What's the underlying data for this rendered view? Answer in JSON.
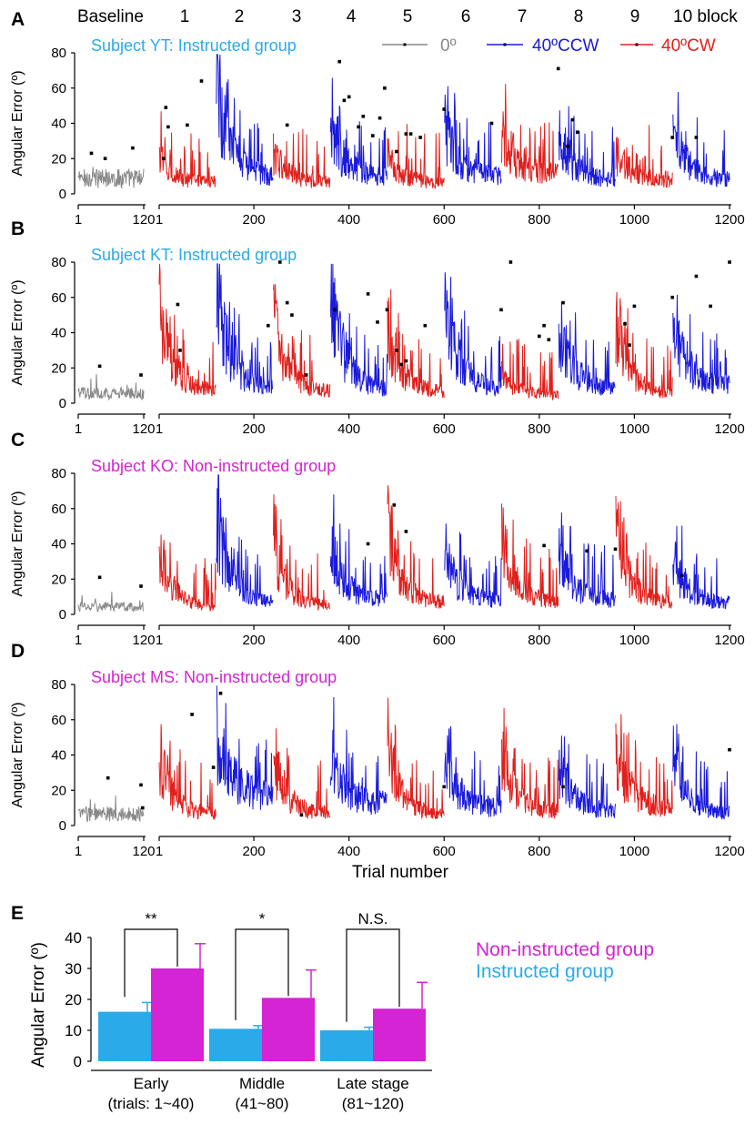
{
  "header": {
    "baseline_label": "Baseline",
    "block_numbers": [
      "1",
      "2",
      "3",
      "4",
      "5",
      "6",
      "7",
      "8",
      "9"
    ],
    "last_block_label": "10 block"
  },
  "legend": {
    "items": [
      {
        "label": "0º",
        "color": "#888888"
      },
      {
        "label": "40ºCCW",
        "color": "#1a1adb"
      },
      {
        "label": "40ºCW",
        "color": "#e0201c"
      }
    ]
  },
  "colors": {
    "baseline": "#888888",
    "ccw": "#1a1adb",
    "cw": "#e0201c",
    "instructed": "#2aaae8",
    "noninstructed": "#d424d4"
  },
  "shared": {
    "ylabel": "Angular Error (º)",
    "xlabel": "Trial number",
    "baseline_ticks": [
      "1",
      "120"
    ],
    "main_ticks": [
      "1",
      "200",
      "400",
      "600",
      "800",
      "1000",
      "1200"
    ],
    "y_ticks": [
      "0",
      "20",
      "40",
      "60",
      "80"
    ]
  },
  "chart_data": [
    {
      "panel": "A",
      "type": "line",
      "title": "Subject YT: Instructed group",
      "title_color": "#2aaae8",
      "ylim": [
        0,
        80
      ],
      "block_directions": [
        "cw",
        "ccw",
        "cw",
        "ccw",
        "cw",
        "ccw",
        "cw",
        "ccw",
        "cw",
        "ccw"
      ],
      "baseline_level": 8,
      "block_start_peak": [
        25,
        78,
        30,
        48,
        26,
        50,
        45,
        40,
        30,
        47
      ],
      "block_end_level": [
        8,
        12,
        8,
        12,
        8,
        12,
        14,
        10,
        10,
        10
      ],
      "outliers": [
        [
          -95,
          23
        ],
        [
          -70,
          20
        ],
        [
          -20,
          26
        ],
        [
          10,
          20
        ],
        [
          15,
          49
        ],
        [
          20,
          38
        ],
        [
          60,
          39
        ],
        [
          90,
          64
        ],
        [
          270,
          39
        ],
        [
          380,
          75
        ],
        [
          390,
          53
        ],
        [
          400,
          55
        ],
        [
          420,
          38
        ],
        [
          430,
          44
        ],
        [
          450,
          33
        ],
        [
          465,
          43
        ],
        [
          475,
          60
        ],
        [
          500,
          24
        ],
        [
          520,
          34
        ],
        [
          530,
          34
        ],
        [
          550,
          32
        ],
        [
          600,
          48
        ],
        [
          700,
          40
        ],
        [
          840,
          71
        ],
        [
          860,
          27
        ],
        [
          870,
          42
        ],
        [
          880,
          35
        ],
        [
          1080,
          32
        ],
        [
          1130,
          32
        ]
      ]
    },
    {
      "panel": "B",
      "type": "line",
      "title": "Subject KT: Instructed group",
      "title_color": "#2aaae8",
      "ylim": [
        0,
        80
      ],
      "block_directions": [
        "cw",
        "ccw",
        "cw",
        "ccw",
        "cw",
        "ccw",
        "cw",
        "ccw",
        "cw",
        "ccw"
      ],
      "baseline_level": 5,
      "block_start_peak": [
        70,
        80,
        62,
        78,
        52,
        75,
        20,
        58,
        62,
        60
      ],
      "block_end_level": [
        8,
        10,
        8,
        10,
        8,
        10,
        6,
        10,
        6,
        12
      ],
      "outliers": [
        [
          -80,
          21
        ],
        [
          -5,
          16
        ],
        [
          40,
          56
        ],
        [
          45,
          30
        ],
        [
          230,
          44
        ],
        [
          255,
          80
        ],
        [
          270,
          57
        ],
        [
          280,
          50
        ],
        [
          310,
          16
        ],
        [
          370,
          53
        ],
        [
          440,
          62
        ],
        [
          460,
          46
        ],
        [
          480,
          53
        ],
        [
          500,
          30
        ],
        [
          510,
          22
        ],
        [
          520,
          24
        ],
        [
          560,
          44
        ],
        [
          720,
          53
        ],
        [
          740,
          80
        ],
        [
          800,
          38
        ],
        [
          810,
          44
        ],
        [
          820,
          36
        ],
        [
          850,
          57
        ],
        [
          980,
          45
        ],
        [
          990,
          33
        ],
        [
          1000,
          55
        ],
        [
          1080,
          60
        ],
        [
          1130,
          72
        ],
        [
          1160,
          55
        ],
        [
          1200,
          80
        ]
      ]
    },
    {
      "panel": "C",
      "type": "line",
      "title": "Subject KO: Non-instructed group",
      "title_color": "#d424d4",
      "ylim": [
        0,
        80
      ],
      "block_directions": [
        "cw",
        "ccw",
        "cw",
        "ccw",
        "cw",
        "ccw",
        "cw",
        "ccw",
        "cw",
        "ccw"
      ],
      "baseline_level": 4,
      "block_start_peak": [
        45,
        72,
        48,
        52,
        62,
        42,
        58,
        45,
        58,
        38
      ],
      "block_end_level": [
        5,
        8,
        6,
        10,
        8,
        10,
        8,
        10,
        8,
        8
      ],
      "outliers": [
        [
          -80,
          21
        ],
        [
          -5,
          16
        ],
        [
          440,
          40
        ],
        [
          495,
          62
        ],
        [
          520,
          47
        ],
        [
          810,
          39
        ],
        [
          900,
          36
        ],
        [
          960,
          37
        ],
        [
          1100,
          22
        ]
      ]
    },
    {
      "panel": "D",
      "type": "line",
      "title": "Subject MS: Non-instructed group",
      "title_color": "#d424d4",
      "ylim": [
        0,
        80
      ],
      "block_directions": [
        "cw",
        "ccw",
        "cw",
        "ccw",
        "cw",
        "ccw",
        "cw",
        "ccw",
        "cw",
        "ccw"
      ],
      "baseline_level": 6,
      "block_start_peak": [
        48,
        65,
        48,
        55,
        50,
        50,
        50,
        45,
        55,
        48
      ],
      "block_end_level": [
        8,
        20,
        8,
        15,
        8,
        12,
        10,
        10,
        12,
        8
      ],
      "outliers": [
        [
          -65,
          27
        ],
        [
          -5,
          23
        ],
        [
          -2,
          10
        ],
        [
          70,
          63
        ],
        [
          115,
          33
        ],
        [
          130,
          75
        ],
        [
          300,
          6
        ],
        [
          600,
          22
        ],
        [
          850,
          22
        ],
        [
          1200,
          43
        ]
      ]
    },
    {
      "panel": "E",
      "type": "bar",
      "categories": [
        "Early\n(trials: 1~40)",
        "Middle\n(41~80)",
        "Late stage\n(81~120)"
      ],
      "category_lines": [
        [
          "Early",
          "(trials: 1~40)"
        ],
        [
          "Middle",
          "(41~80)"
        ],
        [
          "Late stage",
          "(81~120)"
        ]
      ],
      "ylabel": "Angular Error (º)",
      "ylim": [
        0,
        40
      ],
      "y_ticks": [
        "0",
        "10",
        "20",
        "30",
        "40"
      ],
      "series": [
        {
          "name": "Instructed group",
          "color": "#2aaae8",
          "values": [
            16,
            10.5,
            10
          ],
          "errors": [
            3,
            1,
            1
          ]
        },
        {
          "name": "Non-instructed group",
          "color": "#d424d4",
          "values": [
            30,
            20.5,
            17
          ],
          "errors": [
            8,
            9,
            8.5
          ]
        }
      ],
      "significance": [
        "**",
        "*",
        "N.S."
      ]
    }
  ]
}
